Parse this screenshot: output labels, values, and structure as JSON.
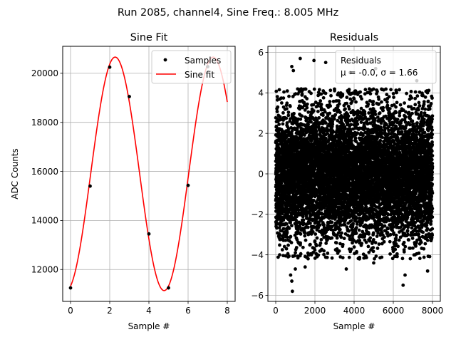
{
  "figure": {
    "suptitle": "Run 2085, channel4, Sine Freq.: 8.005 MHz"
  },
  "chart_data": [
    {
      "type": "line",
      "title": "Sine Fit",
      "xlabel": "Sample #",
      "ylabel": "ADC Counts",
      "xlim": [
        -0.4,
        8.4
      ],
      "ylim": [
        10700,
        21100
      ],
      "xticks": [
        0,
        2,
        4,
        6,
        8
      ],
      "yticks": [
        12000,
        14000,
        16000,
        18000,
        20000
      ],
      "xtick_labels": [
        "0",
        "2",
        "4",
        "6",
        "8"
      ],
      "ytick_labels": [
        "12000",
        "14000",
        "16000",
        "18000",
        "20000"
      ],
      "grid": true,
      "legend": {
        "position": "upper right",
        "entries": [
          "Samples",
          "Sine fit"
        ]
      },
      "samples": {
        "name": "Samples",
        "color": "#000000",
        "x": [
          0,
          1,
          2,
          3,
          4,
          5,
          6,
          7
        ],
        "y": [
          11250,
          15400,
          20250,
          19050,
          13450,
          11250,
          15430,
          20270
        ]
      },
      "fit": {
        "name": "Sine fit",
        "color": "#ff0000",
        "offset": 15900,
        "amplitude": 4760,
        "cycles_per_sample": 0.2,
        "phase_deg": -74,
        "x_range": [
          0,
          8
        ]
      }
    },
    {
      "type": "scatter",
      "title": "Residuals",
      "xlabel": "Sample #",
      "ylabel": "",
      "xlim": [
        -400,
        8400
      ],
      "ylim": [
        -6.3,
        6.3
      ],
      "xticks": [
        0,
        2000,
        4000,
        6000,
        8000
      ],
      "yticks": [
        -6,
        -4,
        -2,
        0,
        2,
        4,
        6
      ],
      "xtick_labels": [
        "0",
        "2000",
        "4000",
        "6000",
        "8000"
      ],
      "ytick_labels": [
        "−6",
        "−4",
        "−2",
        "0",
        "2",
        "4",
        "6"
      ],
      "grid": true,
      "legend": {
        "position": "upper right",
        "title": "Residuals",
        "text": "μ = -0.0, σ = 1.66"
      },
      "series": {
        "name": "Residuals",
        "color": "#000000",
        "n_points": 8000,
        "x_range": [
          0,
          7999
        ],
        "mean": -0.0,
        "sigma": 1.66,
        "clip": 4.2,
        "outliers": [
          [
            850,
            -5.8
          ],
          [
            820,
            -5.3
          ],
          [
            760,
            -5.0
          ],
          [
            1000,
            -4.7
          ],
          [
            1500,
            -4.6
          ],
          [
            1250,
            5.7
          ],
          [
            820,
            5.3
          ],
          [
            900,
            5.1
          ],
          [
            1950,
            5.6
          ],
          [
            2550,
            5.5
          ],
          [
            3600,
            -4.7
          ],
          [
            6500,
            -5.5
          ],
          [
            6600,
            -5.0
          ],
          [
            3800,
            5.0
          ],
          [
            5100,
            5.2
          ],
          [
            3300,
            -4.1
          ],
          [
            7750,
            -4.8
          ],
          [
            5000,
            -4.4
          ],
          [
            7200,
            4.6
          ],
          [
            200,
            -4.0
          ]
        ]
      }
    }
  ]
}
